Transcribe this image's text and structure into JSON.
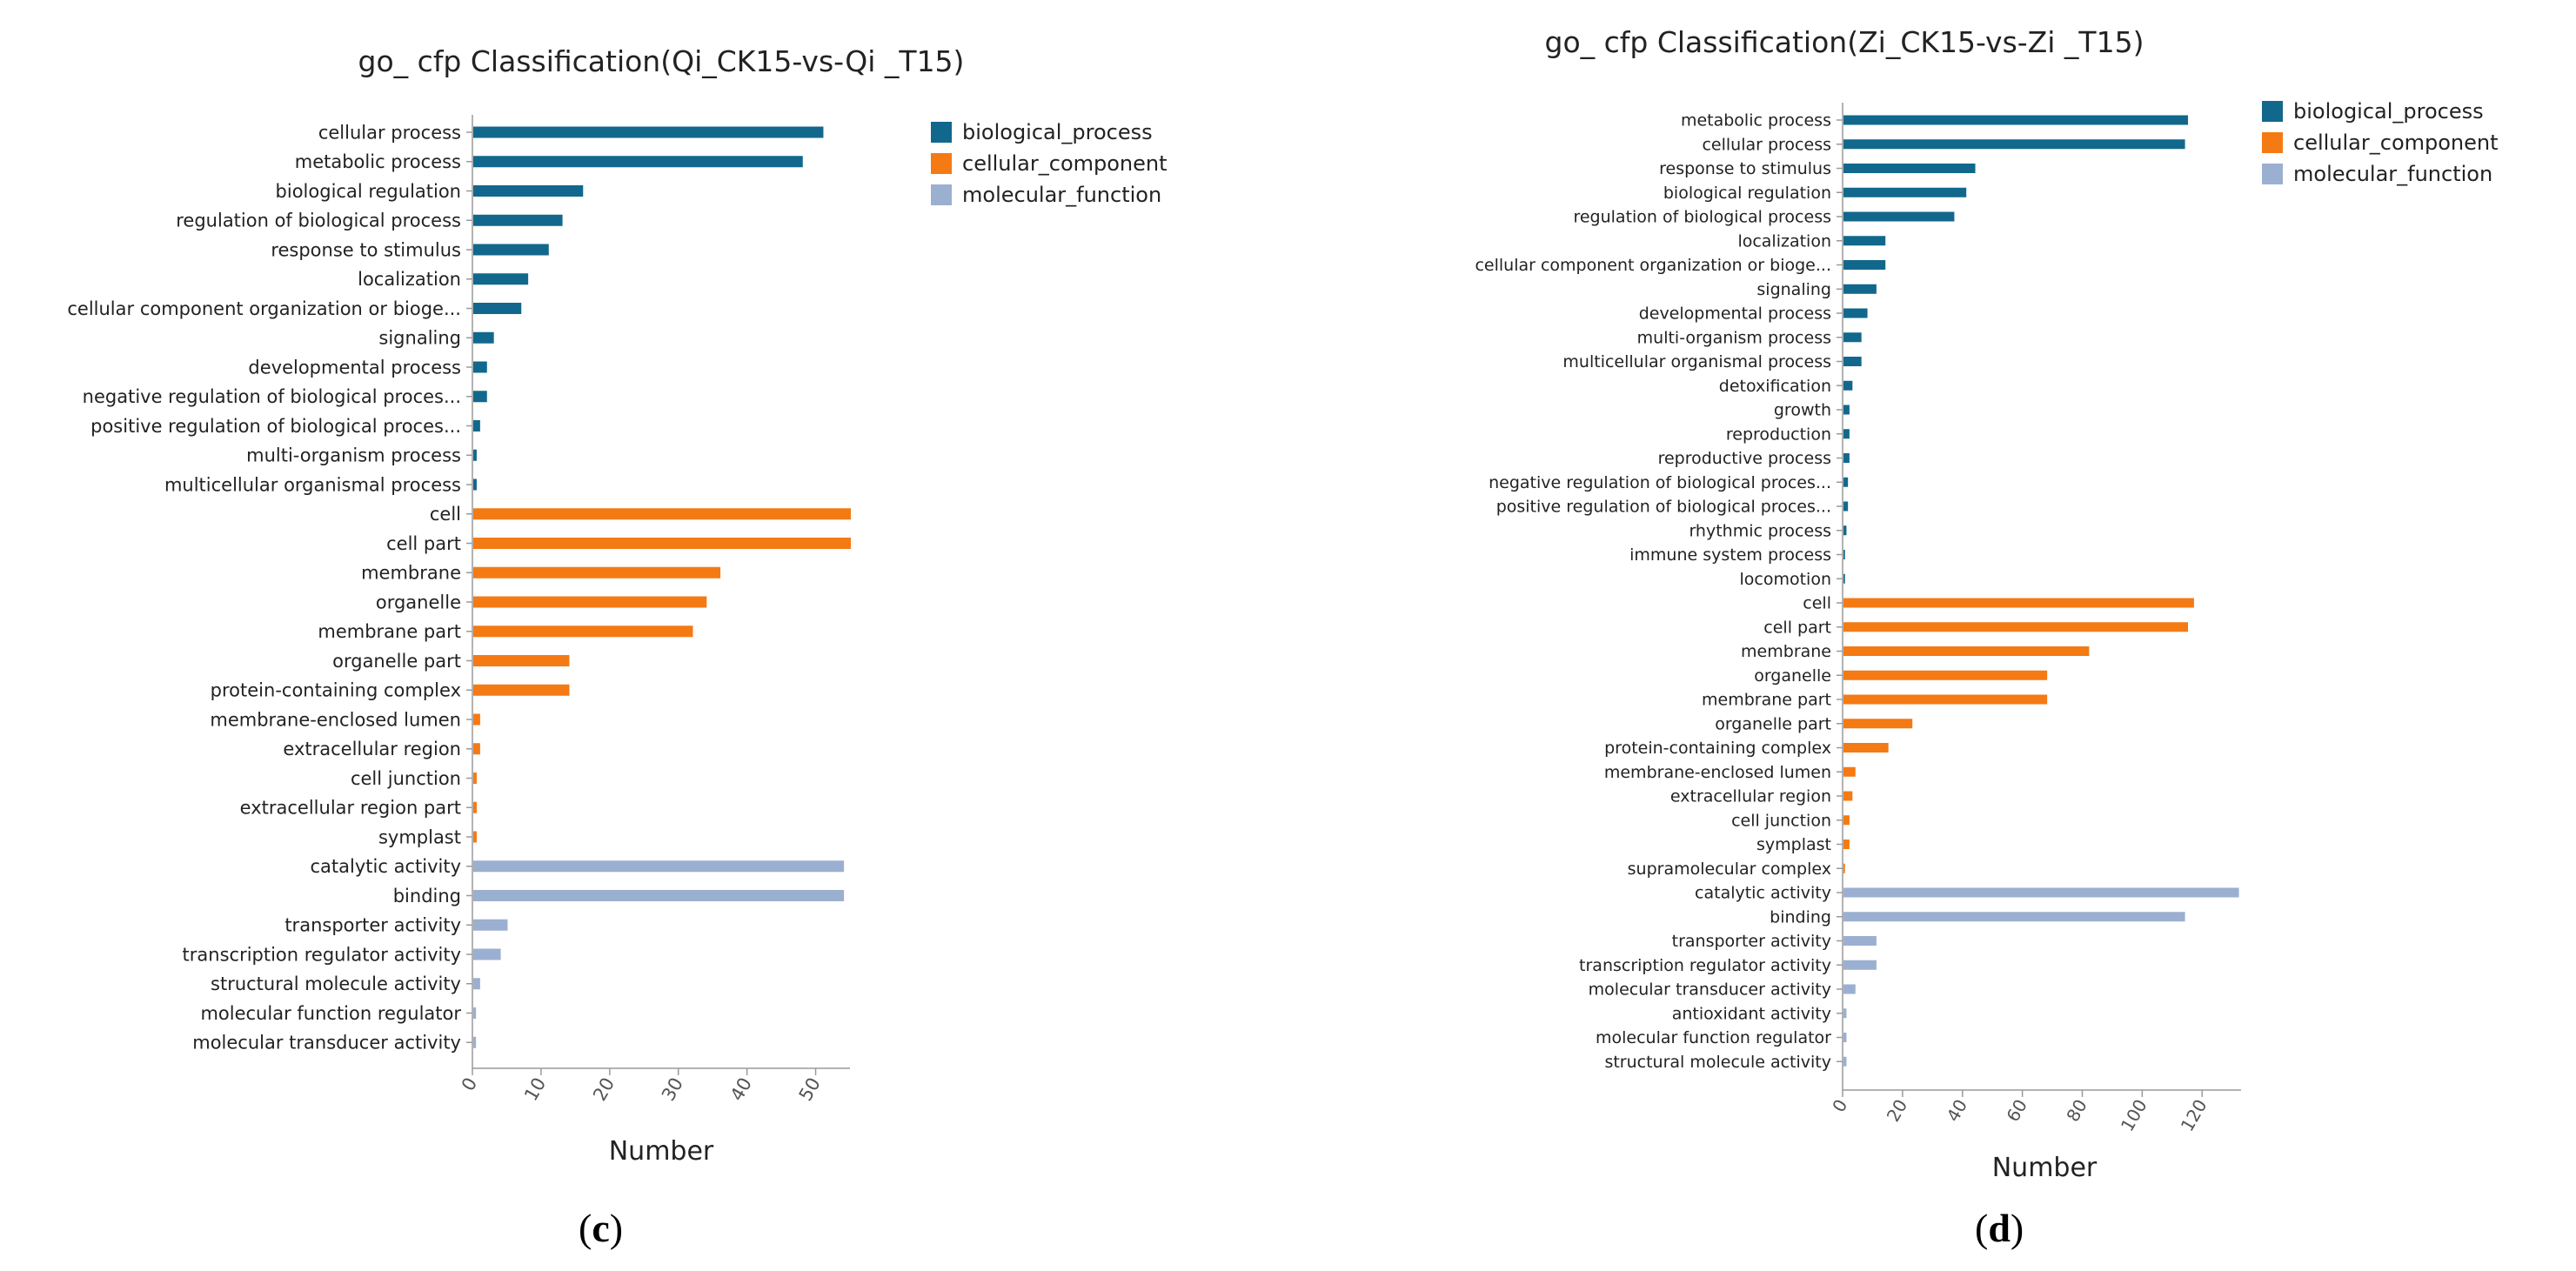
{
  "colors": {
    "biological_process": "#11688c",
    "cellular_component": "#f47a14",
    "molecular_function": "#9bafd1",
    "axis": "#9a9a9a",
    "text": "#222222"
  },
  "chart_data": [
    {
      "id": "c",
      "type": "bar",
      "orientation": "horizontal",
      "title": "go_ cfp Classification(Qi_CK15-vs-Qi _T15)",
      "xlabel": "Number",
      "xlim": [
        0,
        55
      ],
      "xticks": [
        "0",
        "10",
        "20",
        "30",
        "40",
        "50"
      ],
      "xtick_values": [
        0,
        10,
        20,
        30,
        40,
        50
      ],
      "caption_open": "(",
      "caption_letter": "c",
      "caption_close": ")",
      "legend": [
        {
          "key": "biological_process",
          "label": "biological_process"
        },
        {
          "key": "cellular_component",
          "label": "cellular_component"
        },
        {
          "key": "molecular_function",
          "label": "molecular_function"
        }
      ],
      "categories": [
        {
          "label": "cellular process",
          "value": 51,
          "group": "biological_process"
        },
        {
          "label": "metabolic process",
          "value": 48,
          "group": "biological_process"
        },
        {
          "label": "biological regulation",
          "value": 16,
          "group": "biological_process"
        },
        {
          "label": "regulation of biological process",
          "value": 13,
          "group": "biological_process"
        },
        {
          "label": "response to stimulus",
          "value": 11,
          "group": "biological_process"
        },
        {
          "label": "localization",
          "value": 8,
          "group": "biological_process"
        },
        {
          "label": "cellular component organization or bioge...",
          "value": 7,
          "group": "biological_process"
        },
        {
          "label": "signaling",
          "value": 3,
          "group": "biological_process"
        },
        {
          "label": "developmental process",
          "value": 2,
          "group": "biological_process"
        },
        {
          "label": "negative regulation of biological proces...",
          "value": 2,
          "group": "biological_process"
        },
        {
          "label": "positive regulation of biological proces...",
          "value": 1,
          "group": "biological_process"
        },
        {
          "label": "multi-organism process",
          "value": 0.5,
          "group": "biological_process"
        },
        {
          "label": "multicellular organismal process",
          "value": 0.5,
          "group": "biological_process"
        },
        {
          "label": "cell",
          "value": 55,
          "group": "cellular_component"
        },
        {
          "label": "cell part",
          "value": 55,
          "group": "cellular_component"
        },
        {
          "label": "membrane",
          "value": 36,
          "group": "cellular_component"
        },
        {
          "label": "organelle",
          "value": 34,
          "group": "cellular_component"
        },
        {
          "label": "membrane part",
          "value": 32,
          "group": "cellular_component"
        },
        {
          "label": "organelle part",
          "value": 14,
          "group": "cellular_component"
        },
        {
          "label": "protein-containing complex",
          "value": 14,
          "group": "cellular_component"
        },
        {
          "label": "membrane-enclosed lumen",
          "value": 1,
          "group": "cellular_component"
        },
        {
          "label": "extracellular region",
          "value": 1,
          "group": "cellular_component"
        },
        {
          "label": "cell junction",
          "value": 0.5,
          "group": "cellular_component"
        },
        {
          "label": "extracellular region part",
          "value": 0.5,
          "group": "cellular_component"
        },
        {
          "label": "symplast",
          "value": 0.5,
          "group": "cellular_component"
        },
        {
          "label": "catalytic activity",
          "value": 54,
          "group": "molecular_function"
        },
        {
          "label": "binding",
          "value": 54,
          "group": "molecular_function"
        },
        {
          "label": "transporter activity",
          "value": 5,
          "group": "molecular_function"
        },
        {
          "label": "transcription regulator activity",
          "value": 4,
          "group": "molecular_function"
        },
        {
          "label": "structural molecule activity",
          "value": 1,
          "group": "molecular_function"
        },
        {
          "label": "molecular function regulator",
          "value": 0.4,
          "group": "molecular_function"
        },
        {
          "label": "molecular transducer activity",
          "value": 0.4,
          "group": "molecular_function"
        }
      ]
    },
    {
      "id": "d",
      "type": "bar",
      "orientation": "horizontal",
      "title": "go_ cfp Classification(Zi_CK15-vs-Zi _T15)",
      "xlabel": "Number",
      "xlim": [
        0,
        133
      ],
      "xticks": [
        "0",
        "20",
        "40",
        "60",
        "80",
        "100",
        "120"
      ],
      "xtick_values": [
        0,
        20,
        40,
        60,
        80,
        100,
        120
      ],
      "caption_open": "(",
      "caption_letter": "d",
      "caption_close": ")",
      "legend": [
        {
          "key": "biological_process",
          "label": "biological_process"
        },
        {
          "key": "cellular_component",
          "label": "cellular_component"
        },
        {
          "key": "molecular_function",
          "label": "molecular_function"
        }
      ],
      "categories": [
        {
          "label": "metabolic process",
          "value": 115,
          "group": "biological_process"
        },
        {
          "label": "cellular process",
          "value": 114,
          "group": "biological_process"
        },
        {
          "label": "response to stimulus",
          "value": 44,
          "group": "biological_process"
        },
        {
          "label": "biological regulation",
          "value": 41,
          "group": "biological_process"
        },
        {
          "label": "regulation of biological process",
          "value": 37,
          "group": "biological_process"
        },
        {
          "label": "localization",
          "value": 14,
          "group": "biological_process"
        },
        {
          "label": "cellular component organization or bioge...",
          "value": 14,
          "group": "biological_process"
        },
        {
          "label": "signaling",
          "value": 11,
          "group": "biological_process"
        },
        {
          "label": "developmental process",
          "value": 8,
          "group": "biological_process"
        },
        {
          "label": "multi-organism process",
          "value": 6,
          "group": "biological_process"
        },
        {
          "label": "multicellular organismal process",
          "value": 6,
          "group": "biological_process"
        },
        {
          "label": "detoxification",
          "value": 3,
          "group": "biological_process"
        },
        {
          "label": "growth",
          "value": 2,
          "group": "biological_process"
        },
        {
          "label": "reproduction",
          "value": 2,
          "group": "biological_process"
        },
        {
          "label": "reproductive process",
          "value": 2,
          "group": "biological_process"
        },
        {
          "label": "negative regulation of biological proces...",
          "value": 1.5,
          "group": "biological_process"
        },
        {
          "label": "positive regulation of biological proces...",
          "value": 1.5,
          "group": "biological_process"
        },
        {
          "label": "rhythmic process",
          "value": 1,
          "group": "biological_process"
        },
        {
          "label": "immune system process",
          "value": 0.5,
          "group": "biological_process"
        },
        {
          "label": "locomotion",
          "value": 0.5,
          "group": "biological_process"
        },
        {
          "label": "cell",
          "value": 117,
          "group": "cellular_component"
        },
        {
          "label": "cell part",
          "value": 115,
          "group": "cellular_component"
        },
        {
          "label": "membrane",
          "value": 82,
          "group": "cellular_component"
        },
        {
          "label": "organelle",
          "value": 68,
          "group": "cellular_component"
        },
        {
          "label": "membrane part",
          "value": 68,
          "group": "cellular_component"
        },
        {
          "label": "organelle part",
          "value": 23,
          "group": "cellular_component"
        },
        {
          "label": "protein-containing complex",
          "value": 15,
          "group": "cellular_component"
        },
        {
          "label": "membrane-enclosed lumen",
          "value": 4,
          "group": "cellular_component"
        },
        {
          "label": "extracellular region",
          "value": 3,
          "group": "cellular_component"
        },
        {
          "label": "cell junction",
          "value": 2,
          "group": "cellular_component"
        },
        {
          "label": "symplast",
          "value": 2,
          "group": "cellular_component"
        },
        {
          "label": "supramolecular complex",
          "value": 0.5,
          "group": "cellular_component"
        },
        {
          "label": "catalytic activity",
          "value": 132,
          "group": "molecular_function"
        },
        {
          "label": "binding",
          "value": 114,
          "group": "molecular_function"
        },
        {
          "label": "transporter activity",
          "value": 11,
          "group": "molecular_function"
        },
        {
          "label": "transcription regulator activity",
          "value": 11,
          "group": "molecular_function"
        },
        {
          "label": "molecular transducer activity",
          "value": 4,
          "group": "molecular_function"
        },
        {
          "label": "antioxidant activity",
          "value": 1,
          "group": "molecular_function"
        },
        {
          "label": "molecular function regulator",
          "value": 1,
          "group": "molecular_function"
        },
        {
          "label": "structural molecule activity",
          "value": 1,
          "group": "molecular_function"
        }
      ]
    }
  ]
}
